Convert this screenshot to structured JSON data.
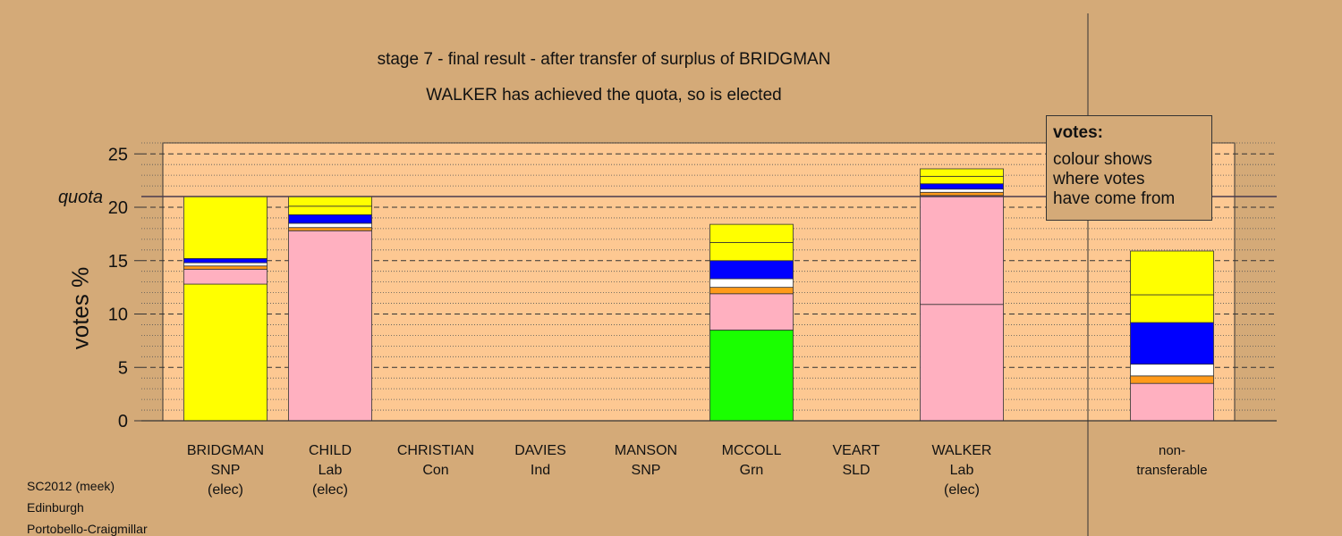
{
  "header": {
    "title": "stage 7 - final result - after transfer of surplus of BRIDGMAN",
    "subtitle": "WALKER has achieved the quota, so is elected"
  },
  "legend": {
    "heading": "votes:",
    "lines": [
      "colour shows",
      "where votes",
      "have come from"
    ]
  },
  "footer": {
    "line1": "SC2012 (meek)",
    "line2": "Edinburgh",
    "line3": "Portobello-Craigmillar"
  },
  "colors": {
    "background": "#d4aa78",
    "plot_area": "#fdc892",
    "SNP": "#ffff00",
    "Lab": "#ffb0c0",
    "SLD": "#ff9a1a",
    "Con": "#0000ff",
    "Ind": "#ffffff",
    "Grn": "#1aff00"
  },
  "chart_data": {
    "type": "bar",
    "stacked": true,
    "ylabel": "votes %",
    "ylim": [
      0,
      25
    ],
    "yticks": [
      0,
      5,
      10,
      15,
      20,
      25
    ],
    "quota_label": "quota",
    "quota": 21.0,
    "categories": [
      {
        "name": "BRIDGMAN",
        "party": "SNP",
        "status": "(elec)"
      },
      {
        "name": "CHILD",
        "party": "Lab",
        "status": "(elec)"
      },
      {
        "name": "CHRISTIAN",
        "party": "Con",
        "status": ""
      },
      {
        "name": "DAVIES",
        "party": "Ind",
        "status": ""
      },
      {
        "name": "MANSON",
        "party": "SNP",
        "status": ""
      },
      {
        "name": "MCCOLL",
        "party": "Grn",
        "status": ""
      },
      {
        "name": "VEART",
        "party": "SLD",
        "status": ""
      },
      {
        "name": "WALKER",
        "party": "Lab",
        "status": "(elec)"
      }
    ],
    "nontransferable_label": [
      "non-",
      "transferable"
    ],
    "bars": [
      {
        "segments": [
          {
            "value": 12.8,
            "color": "#ffff00"
          },
          {
            "value": 1.4,
            "color": "#ffb0c0"
          },
          {
            "value": 0.3,
            "color": "#ff9a1a"
          },
          {
            "value": 0.3,
            "color": "#ffffff"
          },
          {
            "value": 0.4,
            "color": "#0000ff"
          },
          {
            "value": 5.8,
            "color": "#ffff00"
          }
        ]
      },
      {
        "segments": [
          {
            "value": 17.8,
            "color": "#ffb0c0"
          },
          {
            "value": 0.3,
            "color": "#ff9a1a"
          },
          {
            "value": 0.4,
            "color": "#ffffff"
          },
          {
            "value": 0.8,
            "color": "#0000ff"
          },
          {
            "value": 0.8,
            "color": "#ffff00"
          },
          {
            "value": 0.9,
            "color": "#ffff00"
          }
        ]
      },
      {
        "segments": []
      },
      {
        "segments": []
      },
      {
        "segments": []
      },
      {
        "segments": [
          {
            "value": 8.5,
            "color": "#1aff00"
          },
          {
            "value": 3.4,
            "color": "#ffb0c0"
          },
          {
            "value": 0.6,
            "color": "#ff9a1a"
          },
          {
            "value": 0.8,
            "color": "#ffffff"
          },
          {
            "value": 1.7,
            "color": "#0000ff"
          },
          {
            "value": 1.7,
            "color": "#ffff00"
          },
          {
            "value": 1.7,
            "color": "#ffff00"
          }
        ]
      },
      {
        "segments": []
      },
      {
        "segments": [
          {
            "value": 10.9,
            "color": "#ffb0c0"
          },
          {
            "value": 10.2,
            "color": "#ffb0c0"
          },
          {
            "value": 0.3,
            "color": "#ff9a1a"
          },
          {
            "value": 0.3,
            "color": "#ffffff"
          },
          {
            "value": 0.5,
            "color": "#0000ff"
          },
          {
            "value": 0.7,
            "color": "#ffff00"
          },
          {
            "value": 0.7,
            "color": "#ffff00"
          }
        ]
      }
    ],
    "nontransferable": {
      "segments": [
        {
          "value": 3.5,
          "color": "#ffb0c0"
        },
        {
          "value": 0.7,
          "color": "#ff9a1a"
        },
        {
          "value": 1.1,
          "color": "#ffffff"
        },
        {
          "value": 3.9,
          "color": "#0000ff"
        },
        {
          "value": 2.6,
          "color": "#ffff00"
        },
        {
          "value": 4.1,
          "color": "#ffff00"
        }
      ]
    }
  }
}
